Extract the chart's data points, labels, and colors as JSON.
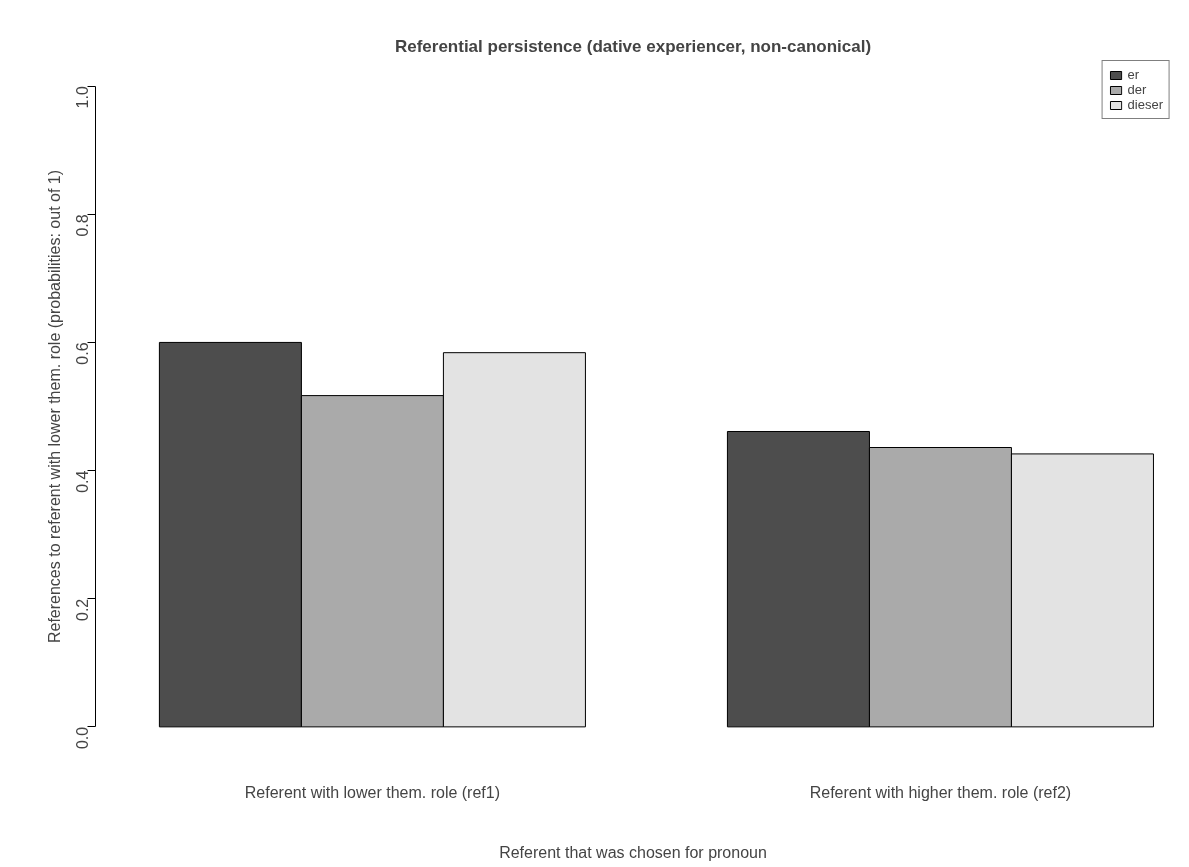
{
  "chart_data": {
    "type": "bar",
    "title": "Referential persistence (dative experiencer, non-canonical)",
    "xlabel": "Referent that was chosen for pronoun",
    "ylabel": "References to referent with lower them. role (probabilities: out of 1)",
    "categories": [
      "Referent with lower them. role (ref1)",
      "Referent with higher them. role (ref2)"
    ],
    "series": [
      {
        "name": "er",
        "color": "#4d4d4d",
        "values": [
          0.6,
          0.461
        ]
      },
      {
        "name": "der",
        "color": "#aaaaaa",
        "values": [
          0.517,
          0.436
        ]
      },
      {
        "name": "dieser",
        "color": "#e3e3e3",
        "values": [
          0.584,
          0.426
        ]
      }
    ],
    "ylim": [
      0,
      1
    ],
    "yticks": [
      {
        "value": 0,
        "label": "0.0"
      },
      {
        "value": 0.2,
        "label": "0.2"
      },
      {
        "value": 0.4,
        "label": "0.4"
      },
      {
        "value": 0.6,
        "label": "0.6"
      },
      {
        "value": 0.8,
        "label": "0.8"
      },
      {
        "value": 1,
        "label": "1.0"
      }
    ],
    "grid": false,
    "legend": "top right"
  }
}
